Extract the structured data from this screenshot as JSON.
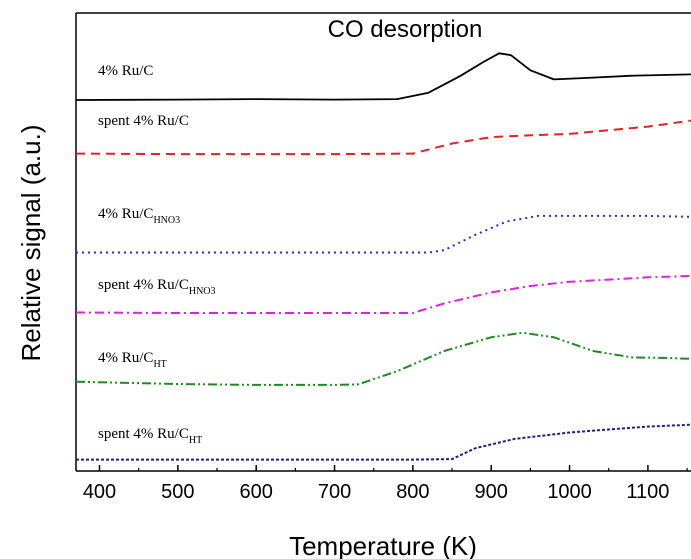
{
  "chart_data": {
    "type": "line",
    "title": "CO desorption",
    "xlabel": "Temperature (K)",
    "ylabel": "Relative signal (a.u.)",
    "xlim": [
      370,
      1155
    ],
    "x_ticks": [
      400,
      500,
      600,
      700,
      800,
      900,
      1000,
      1100
    ],
    "y_ticks_shown": false,
    "grid": false,
    "legend": "inline labels",
    "series": [
      {
        "name": "4% Ru/C",
        "label_main": "4% Ru/C",
        "label_sub": "",
        "color": "#000000",
        "style": "solid",
        "points": [
          [
            370,
            0.81
          ],
          [
            500,
            0.811
          ],
          [
            600,
            0.812
          ],
          [
            700,
            0.811
          ],
          [
            780,
            0.812
          ],
          [
            820,
            0.826
          ],
          [
            860,
            0.862
          ],
          [
            890,
            0.893
          ],
          [
            910,
            0.912
          ],
          [
            925,
            0.908
          ],
          [
            950,
            0.875
          ],
          [
            980,
            0.855
          ],
          [
            1020,
            0.858
          ],
          [
            1080,
            0.863
          ],
          [
            1155,
            0.866
          ]
        ]
      },
      {
        "name": "spent 4% Ru/C",
        "label_main": "spent 4% Ru/C",
        "label_sub": "",
        "color": "#e8201e",
        "style": "dashed",
        "points": [
          [
            370,
            0.693
          ],
          [
            500,
            0.692
          ],
          [
            600,
            0.692
          ],
          [
            700,
            0.692
          ],
          [
            800,
            0.693
          ],
          [
            850,
            0.715
          ],
          [
            900,
            0.729
          ],
          [
            950,
            0.733
          ],
          [
            1000,
            0.736
          ],
          [
            1050,
            0.744
          ],
          [
            1100,
            0.752
          ],
          [
            1155,
            0.765
          ]
        ]
      },
      {
        "name": "4% Ru/C_HNO3",
        "label_main": "4% Ru/C",
        "label_sub": "HNO3",
        "color": "#2a2ae6",
        "style": "dotted",
        "points": [
          [
            370,
            0.477
          ],
          [
            500,
            0.477
          ],
          [
            600,
            0.477
          ],
          [
            700,
            0.477
          ],
          [
            820,
            0.477
          ],
          [
            840,
            0.482
          ],
          [
            880,
            0.516
          ],
          [
            920,
            0.545
          ],
          [
            960,
            0.557
          ],
          [
            1000,
            0.557
          ],
          [
            1100,
            0.557
          ],
          [
            1155,
            0.555
          ]
        ]
      },
      {
        "name": "spent 4% Ru/C_HNO3",
        "label_main": "spent 4% Ru/C",
        "label_sub": "HNO3",
        "color": "#dd22dd",
        "style": "dashdot",
        "points": [
          [
            370,
            0.346
          ],
          [
            500,
            0.345
          ],
          [
            600,
            0.345
          ],
          [
            700,
            0.345
          ],
          [
            800,
            0.345
          ],
          [
            840,
            0.366
          ],
          [
            900,
            0.39
          ],
          [
            950,
            0.404
          ],
          [
            1000,
            0.413
          ],
          [
            1050,
            0.418
          ],
          [
            1100,
            0.423
          ],
          [
            1155,
            0.426
          ]
        ]
      },
      {
        "name": "4% Ru/C_HT",
        "label_main": "4% Ru/C",
        "label_sub": "HT",
        "color": "#1e8c1e",
        "style": "dashdotdot",
        "points": [
          [
            370,
            0.195
          ],
          [
            500,
            0.19
          ],
          [
            600,
            0.188
          ],
          [
            700,
            0.188
          ],
          [
            730,
            0.189
          ],
          [
            780,
            0.218
          ],
          [
            840,
            0.262
          ],
          [
            900,
            0.292
          ],
          [
            940,
            0.302
          ],
          [
            980,
            0.292
          ],
          [
            1030,
            0.262
          ],
          [
            1080,
            0.248
          ],
          [
            1120,
            0.247
          ],
          [
            1155,
            0.245
          ]
        ]
      },
      {
        "name": "spent 4% Ru/C_HT",
        "label_main": "spent 4% Ru/C",
        "label_sub": "HT",
        "color": "#1e1e96",
        "style": "shortdash",
        "points": [
          [
            370,
            0.025
          ],
          [
            500,
            0.025
          ],
          [
            600,
            0.025
          ],
          [
            700,
            0.025
          ],
          [
            800,
            0.025
          ],
          [
            850,
            0.026
          ],
          [
            880,
            0.05
          ],
          [
            930,
            0.07
          ],
          [
            1000,
            0.084
          ],
          [
            1060,
            0.092
          ],
          [
            1100,
            0.097
          ],
          [
            1155,
            0.101
          ]
        ]
      }
    ]
  }
}
